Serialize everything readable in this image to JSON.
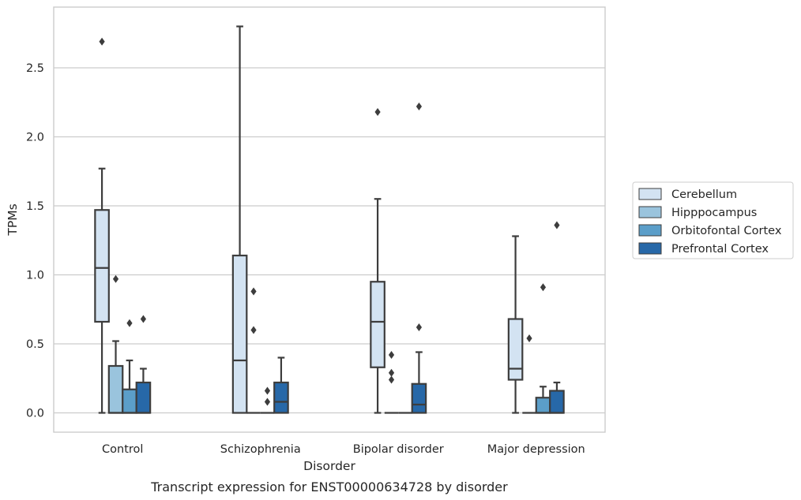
{
  "chart_data": {
    "type": "box",
    "title": "",
    "caption": "Transcript expression for ENST00000634728 by disorder",
    "xlabel": "Disorder",
    "ylabel": "TPMs",
    "ylim": [
      -0.14,
      2.94
    ],
    "yticks": [
      0.0,
      0.5,
      1.0,
      1.5,
      2.0,
      2.5
    ],
    "ytick_labels": [
      "0.0",
      "0.5",
      "1.0",
      "1.5",
      "2.0",
      "2.5"
    ],
    "grid": "horizontal",
    "legend_position": "right",
    "categories": [
      "Control",
      "Schizophrenia",
      "Bipolar disorder",
      "Major depression"
    ],
    "series": [
      {
        "name": "Cerebellum",
        "color": "#d3e3f2",
        "boxes": [
          {
            "min": 0.0,
            "q1": 0.66,
            "median": 1.05,
            "q3": 1.47,
            "max": 1.77,
            "outliers": [
              2.69
            ]
          },
          {
            "min": 0.0,
            "q1": 0.0,
            "median": 0.38,
            "q3": 1.14,
            "max": 2.8,
            "outliers": []
          },
          {
            "min": 0.0,
            "q1": 0.33,
            "median": 0.66,
            "q3": 0.95,
            "max": 1.55,
            "outliers": [
              2.18
            ]
          },
          {
            "min": 0.0,
            "q1": 0.24,
            "median": 0.32,
            "q3": 0.68,
            "max": 1.28,
            "outliers": []
          }
        ]
      },
      {
        "name": "Hipppocampus",
        "color": "#9ac4dd",
        "boxes": [
          {
            "min": 0.0,
            "q1": 0.0,
            "median": 0.0,
            "q3": 0.34,
            "max": 0.52,
            "outliers": [
              0.97
            ]
          },
          {
            "min": 0.0,
            "q1": 0.0,
            "median": 0.0,
            "q3": 0.0,
            "max": 0.0,
            "outliers": [
              0.88,
              0.6
            ]
          },
          {
            "min": 0.0,
            "q1": 0.0,
            "median": 0.0,
            "q3": 0.0,
            "max": 0.0,
            "outliers": [
              0.42,
              0.29,
              0.24
            ]
          },
          {
            "min": 0.0,
            "q1": 0.0,
            "median": 0.0,
            "q3": 0.0,
            "max": 0.0,
            "outliers": [
              0.54
            ]
          }
        ]
      },
      {
        "name": "Orbitofontal Cortex",
        "color": "#5b9ec9",
        "boxes": [
          {
            "min": 0.0,
            "q1": 0.0,
            "median": 0.0,
            "q3": 0.17,
            "max": 0.38,
            "outliers": [
              0.65
            ]
          },
          {
            "min": 0.0,
            "q1": 0.0,
            "median": 0.0,
            "q3": 0.0,
            "max": 0.0,
            "outliers": [
              0.16,
              0.08
            ]
          },
          {
            "min": 0.0,
            "q1": 0.0,
            "median": 0.0,
            "q3": 0.0,
            "max": 0.0,
            "outliers": []
          },
          {
            "min": 0.0,
            "q1": 0.0,
            "median": 0.0,
            "q3": 0.11,
            "max": 0.19,
            "outliers": [
              0.91
            ]
          }
        ]
      },
      {
        "name": "Prefrontal Cortex",
        "color": "#2768a8",
        "boxes": [
          {
            "min": 0.0,
            "q1": 0.0,
            "median": 0.0,
            "q3": 0.22,
            "max": 0.32,
            "outliers": [
              0.68
            ]
          },
          {
            "min": 0.0,
            "q1": 0.0,
            "median": 0.08,
            "q3": 0.22,
            "max": 0.4,
            "outliers": []
          },
          {
            "min": 0.0,
            "q1": 0.0,
            "median": 0.06,
            "q3": 0.21,
            "max": 0.44,
            "outliers": [
              2.22,
              0.62
            ]
          },
          {
            "min": 0.0,
            "q1": 0.0,
            "median": 0.0,
            "q3": 0.16,
            "max": 0.22,
            "outliers": [
              1.36
            ]
          }
        ]
      }
    ]
  }
}
